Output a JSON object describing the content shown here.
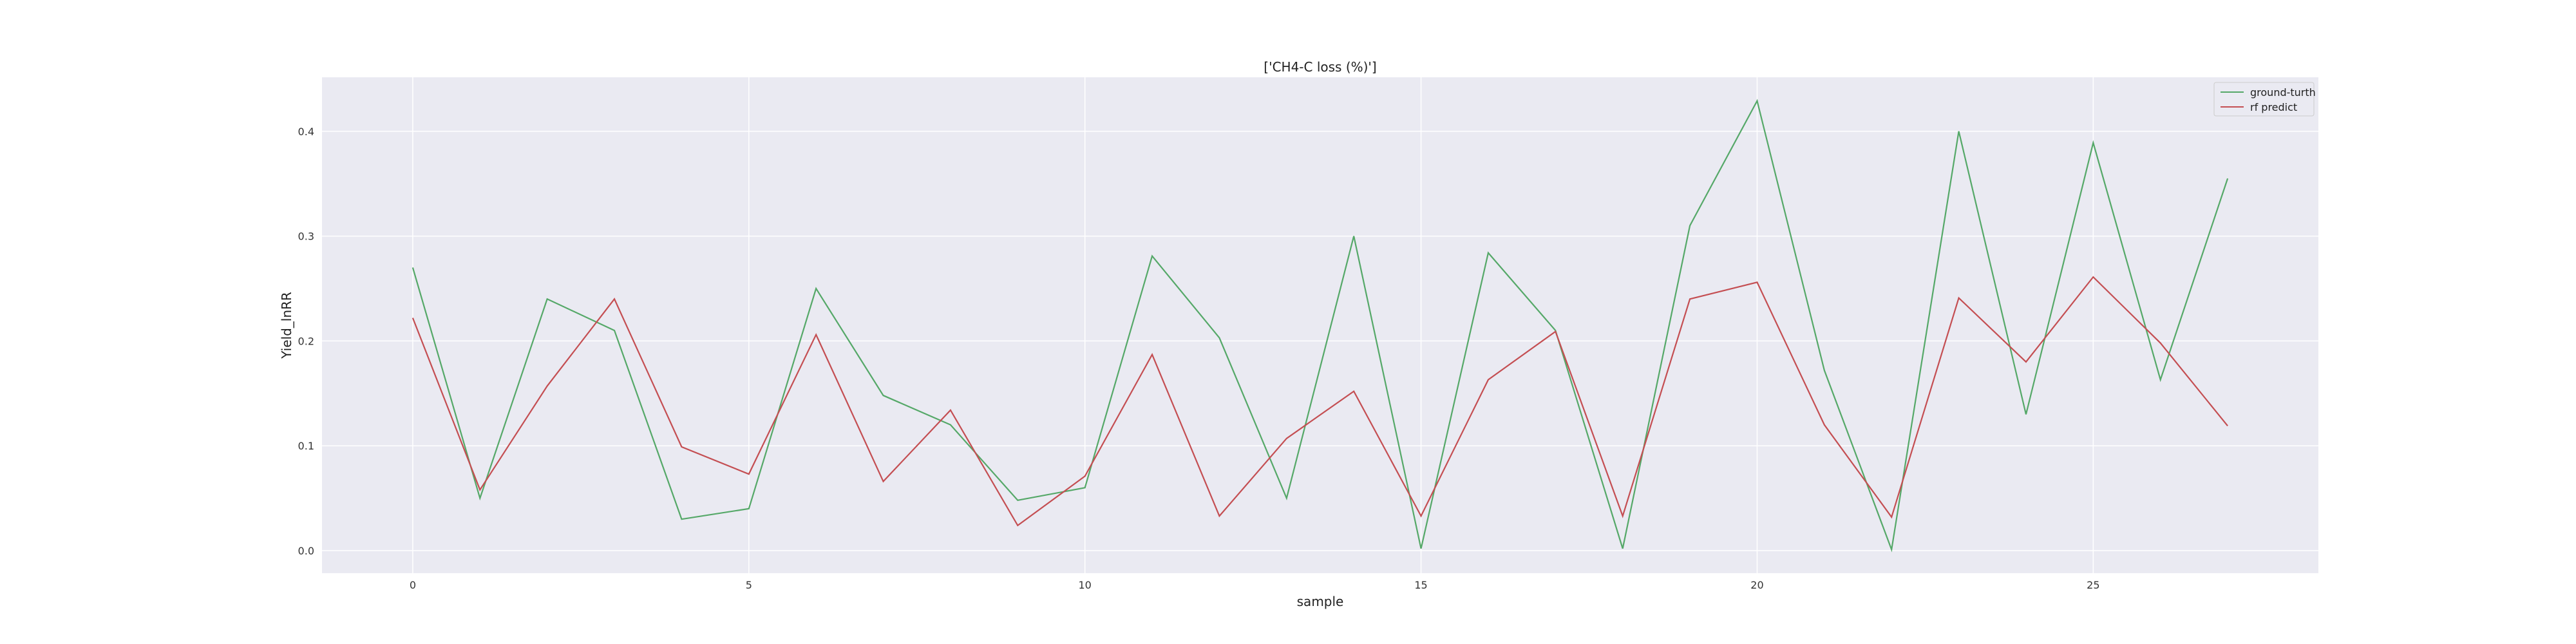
{
  "chart_data": {
    "type": "line",
    "title": "['CH4-C loss (%)']",
    "xlabel": "sample",
    "ylabel": "Yield_lnRR",
    "xlim": [
      -1.35,
      28.35
    ],
    "ylim": [
      -0.0215,
      0.4515
    ],
    "xticks": [
      0,
      5,
      10,
      15,
      20,
      25
    ],
    "xtick_labels": [
      "0",
      "5",
      "10",
      "15",
      "20",
      "25"
    ],
    "yticks": [
      0.0,
      0.1,
      0.2,
      0.3,
      0.4
    ],
    "ytick_labels": [
      "0.0",
      "0.1",
      "0.2",
      "0.3",
      "0.4"
    ],
    "grid": true,
    "legend_position": "top-right",
    "x": [
      0,
      1,
      2,
      3,
      4,
      5,
      6,
      7,
      8,
      9,
      10,
      11,
      12,
      13,
      14,
      15,
      16,
      17,
      18,
      19,
      20,
      21,
      22,
      23,
      24,
      25,
      26,
      27
    ],
    "series": [
      {
        "name": "ground-turth",
        "color": "#55a868",
        "values": [
          0.27,
          0.05,
          0.24,
          0.21,
          0.03,
          0.04,
          0.25,
          0.148,
          0.12,
          0.048,
          0.06,
          0.281,
          0.203,
          0.05,
          0.3,
          0.002,
          0.284,
          0.21,
          0.002,
          0.31,
          0.429,
          0.172,
          0.001,
          0.4,
          0.13,
          0.389,
          0.163,
          0.355
        ]
      },
      {
        "name": "rf predict",
        "color": "#c44e52",
        "values": [
          0.222,
          0.058,
          0.157,
          0.24,
          0.099,
          0.073,
          0.206,
          0.066,
          0.134,
          0.024,
          0.071,
          0.187,
          0.033,
          0.107,
          0.152,
          0.033,
          0.163,
          0.209,
          0.033,
          0.24,
          0.256,
          0.12,
          0.032,
          0.241,
          0.18,
          0.261,
          0.198,
          0.119
        ]
      }
    ],
    "colors": {
      "plot_background": "#eaeaf2",
      "grid": "#ffffff",
      "page_background": "#ffffff"
    }
  }
}
